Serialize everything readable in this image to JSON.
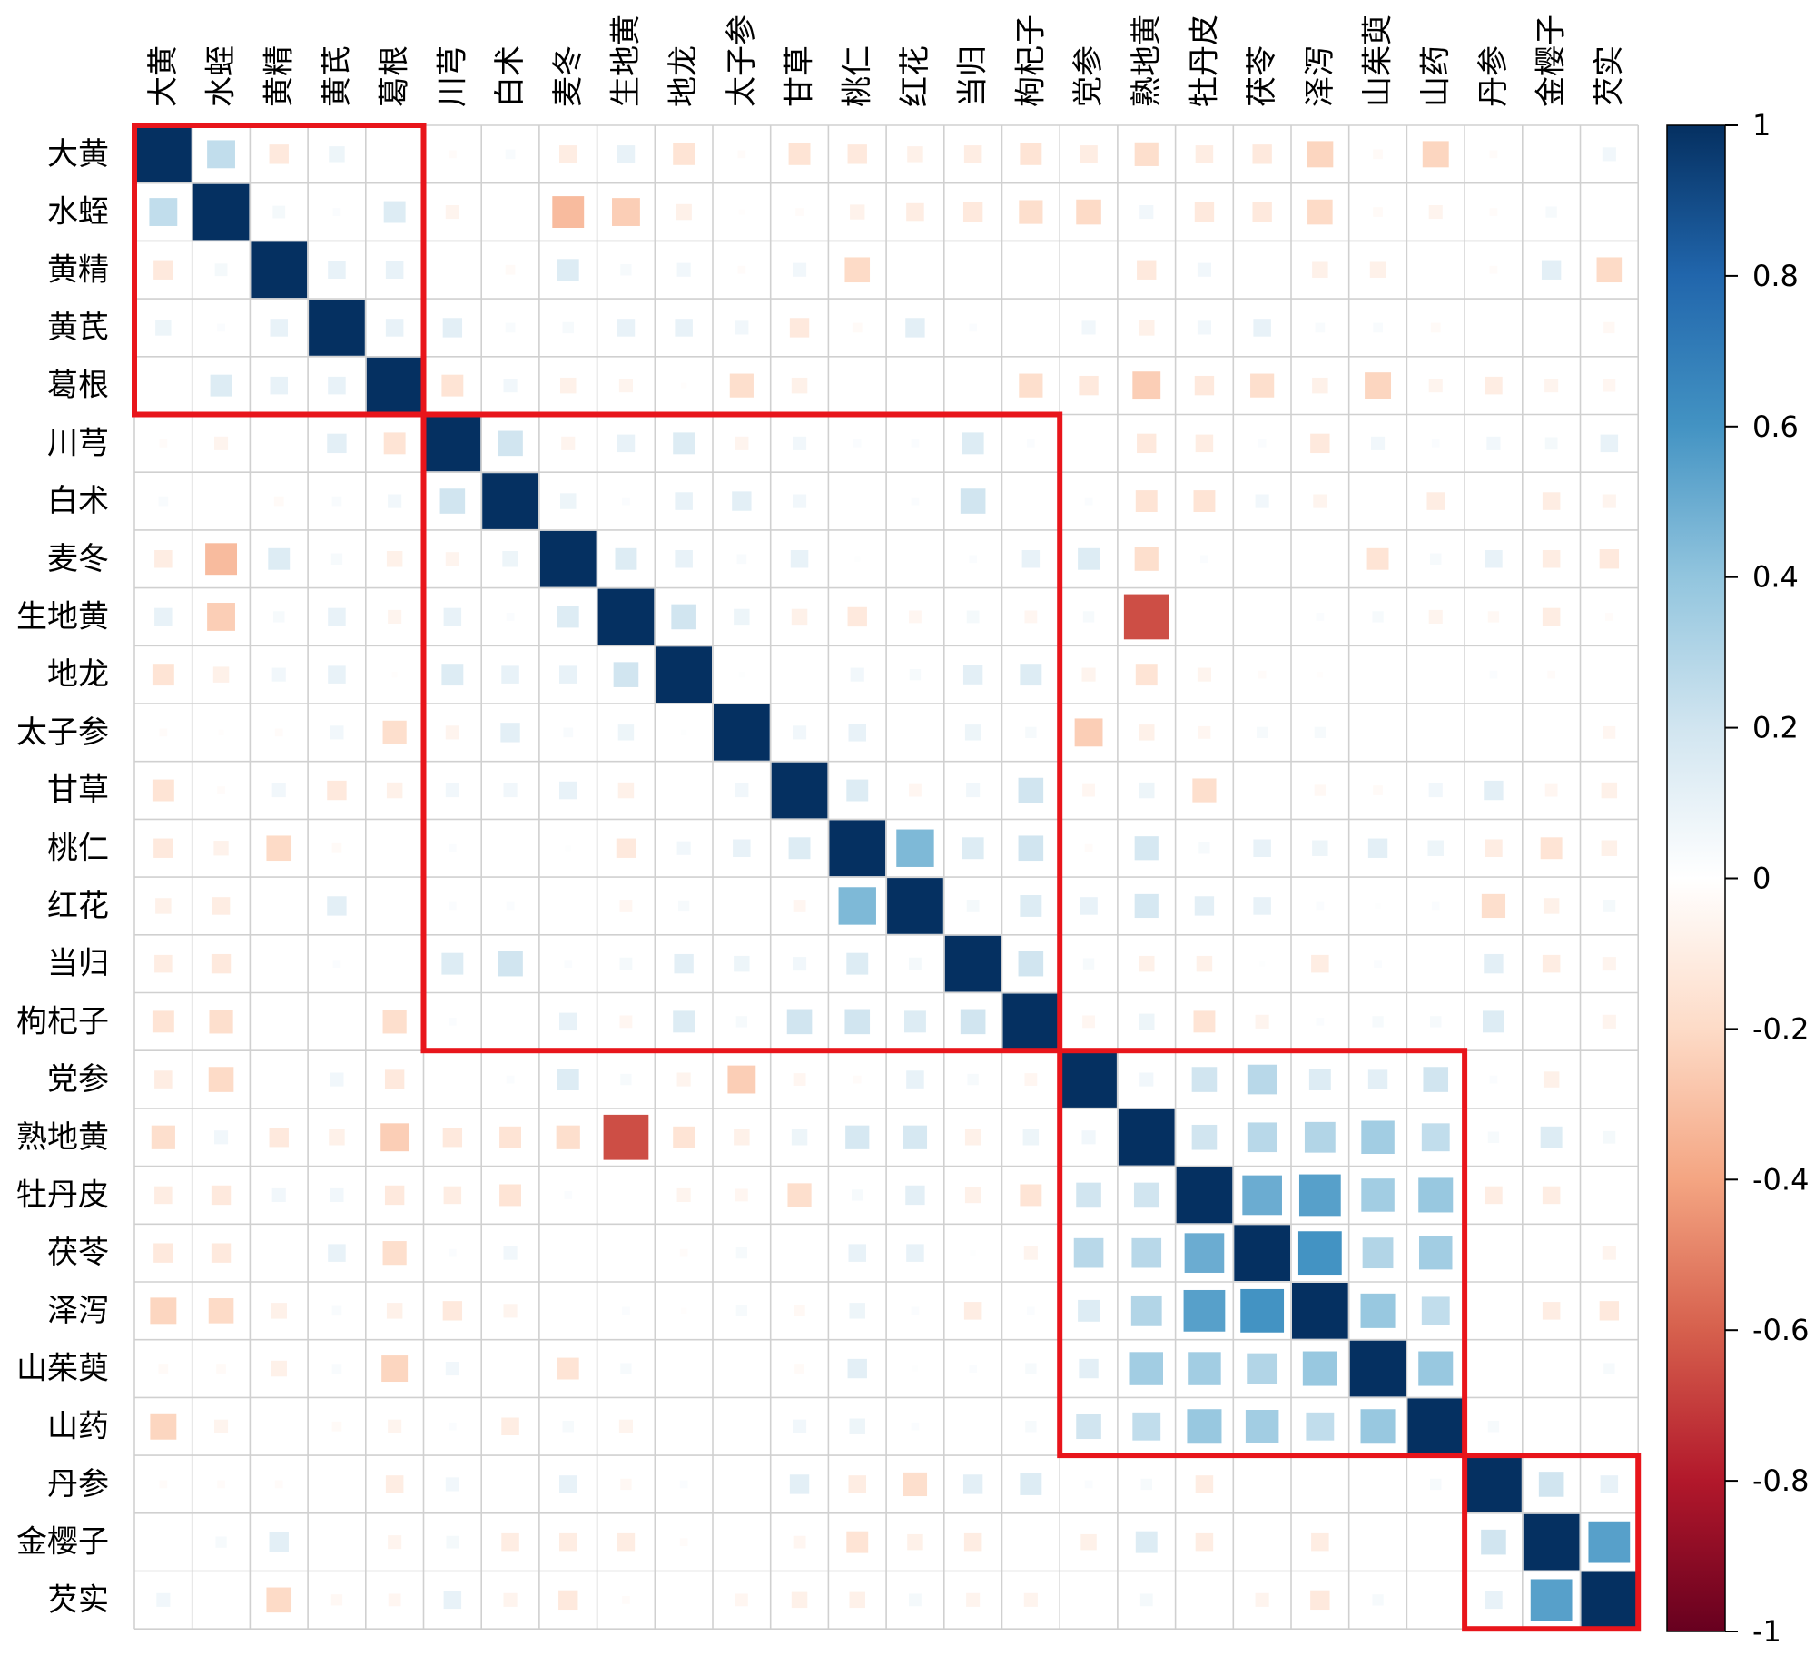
{
  "chart_data": {
    "type": "heatmap",
    "title": "",
    "labels": [
      "大黄",
      "水蛭",
      "黄精",
      "黄芪",
      "葛根",
      "川芎",
      "白术",
      "麦冬",
      "生地黄",
      "地龙",
      "太子参",
      "甘草",
      "桃仁",
      "红花",
      "当归",
      "枸杞子",
      "党参",
      "熟地黄",
      "牡丹皮",
      "茯苓",
      "泽泻",
      "山茱萸",
      "山药",
      "丹参",
      "金樱子",
      "芡实"
    ],
    "colorbar_ticks": [
      "1",
      "0.8",
      "0.6",
      "0.4",
      "0.2",
      "0",
      "-0.2",
      "-0.4",
      "-0.6",
      "-0.8",
      "-1"
    ],
    "color_range": [
      -1,
      1
    ],
    "clusters": [
      {
        "start": 0,
        "end": 4
      },
      {
        "start": 5,
        "end": 15
      },
      {
        "start": 16,
        "end": 22
      },
      {
        "start": 23,
        "end": 25
      }
    ],
    "colors": {
      "cluster_border": "#e8151b",
      "grid": "#d0d0d0",
      "scale": [
        "#67001f",
        "#b2182b",
        "#d6604d",
        "#f4a582",
        "#fddbc7",
        "#ffffff",
        "#d1e5f0",
        "#92c5de",
        "#4393c3",
        "#2166ac",
        "#053061"
      ]
    },
    "pairs": [
      [
        0,
        1,
        0.25
      ],
      [
        0,
        2,
        -0.12
      ],
      [
        0,
        3,
        0.08
      ],
      [
        0,
        5,
        -0.02
      ],
      [
        0,
        6,
        0.03
      ],
      [
        0,
        7,
        -0.1
      ],
      [
        0,
        8,
        0.1
      ],
      [
        0,
        9,
        -0.15
      ],
      [
        0,
        10,
        -0.02
      ],
      [
        0,
        11,
        -0.15
      ],
      [
        0,
        12,
        -0.12
      ],
      [
        0,
        13,
        -0.08
      ],
      [
        0,
        14,
        -0.1
      ],
      [
        0,
        15,
        -0.15
      ],
      [
        0,
        16,
        -0.1
      ],
      [
        0,
        17,
        -0.18
      ],
      [
        0,
        18,
        -0.1
      ],
      [
        0,
        19,
        -0.12
      ],
      [
        0,
        20,
        -0.22
      ],
      [
        0,
        21,
        -0.03
      ],
      [
        0,
        22,
        -0.22
      ],
      [
        0,
        23,
        -0.02
      ],
      [
        0,
        25,
        0.06
      ],
      [
        1,
        2,
        0.05
      ],
      [
        1,
        3,
        0.02
      ],
      [
        1,
        4,
        0.15
      ],
      [
        1,
        5,
        -0.06
      ],
      [
        1,
        7,
        -0.32
      ],
      [
        1,
        8,
        -0.25
      ],
      [
        1,
        9,
        -0.08
      ],
      [
        1,
        10,
        -0.01
      ],
      [
        1,
        11,
        -0.02
      ],
      [
        1,
        12,
        -0.07
      ],
      [
        1,
        13,
        -0.1
      ],
      [
        1,
        14,
        -0.12
      ],
      [
        1,
        15,
        -0.18
      ],
      [
        1,
        16,
        -0.2
      ],
      [
        1,
        17,
        0.06
      ],
      [
        1,
        18,
        -0.12
      ],
      [
        1,
        19,
        -0.12
      ],
      [
        1,
        20,
        -0.2
      ],
      [
        1,
        21,
        -0.03
      ],
      [
        1,
        22,
        -0.06
      ],
      [
        1,
        23,
        -0.02
      ],
      [
        1,
        24,
        0.04
      ],
      [
        2,
        3,
        0.1
      ],
      [
        2,
        4,
        0.1
      ],
      [
        2,
        6,
        -0.03
      ],
      [
        2,
        7,
        0.15
      ],
      [
        2,
        8,
        0.04
      ],
      [
        2,
        9,
        0.06
      ],
      [
        2,
        10,
        -0.02
      ],
      [
        2,
        11,
        0.06
      ],
      [
        2,
        12,
        -0.2
      ],
      [
        2,
        17,
        -0.12
      ],
      [
        2,
        18,
        0.06
      ],
      [
        2,
        20,
        -0.08
      ],
      [
        2,
        21,
        -0.08
      ],
      [
        2,
        23,
        -0.02
      ],
      [
        2,
        24,
        0.12
      ],
      [
        2,
        25,
        -0.2
      ],
      [
        3,
        4,
        0.1
      ],
      [
        3,
        5,
        0.12
      ],
      [
        3,
        6,
        0.03
      ],
      [
        3,
        7,
        0.04
      ],
      [
        3,
        8,
        0.1
      ],
      [
        3,
        9,
        0.1
      ],
      [
        3,
        10,
        0.06
      ],
      [
        3,
        11,
        -0.12
      ],
      [
        3,
        12,
        -0.03
      ],
      [
        3,
        13,
        0.12
      ],
      [
        3,
        14,
        0.02
      ],
      [
        3,
        16,
        0.06
      ],
      [
        3,
        17,
        -0.08
      ],
      [
        3,
        18,
        0.06
      ],
      [
        3,
        19,
        0.1
      ],
      [
        3,
        20,
        0.03
      ],
      [
        3,
        21,
        0.03
      ],
      [
        3,
        22,
        -0.03
      ],
      [
        3,
        25,
        -0.04
      ],
      [
        4,
        5,
        -0.15
      ],
      [
        4,
        6,
        0.06
      ],
      [
        4,
        7,
        -0.08
      ],
      [
        4,
        8,
        -0.06
      ],
      [
        4,
        9,
        -0.01
      ],
      [
        4,
        10,
        -0.18
      ],
      [
        4,
        11,
        -0.08
      ],
      [
        4,
        15,
        -0.18
      ],
      [
        4,
        16,
        -0.12
      ],
      [
        4,
        17,
        -0.25
      ],
      [
        4,
        18,
        -0.12
      ],
      [
        4,
        19,
        -0.18
      ],
      [
        4,
        20,
        -0.08
      ],
      [
        4,
        21,
        -0.22
      ],
      [
        4,
        22,
        -0.06
      ],
      [
        4,
        23,
        -0.1
      ],
      [
        4,
        24,
        -0.06
      ],
      [
        4,
        25,
        -0.05
      ],
      [
        5,
        6,
        0.2
      ],
      [
        5,
        7,
        -0.06
      ],
      [
        5,
        8,
        0.1
      ],
      [
        5,
        9,
        0.15
      ],
      [
        5,
        10,
        -0.06
      ],
      [
        5,
        11,
        0.06
      ],
      [
        5,
        12,
        0.02
      ],
      [
        5,
        13,
        0.02
      ],
      [
        5,
        14,
        0.15
      ],
      [
        5,
        15,
        0.02
      ],
      [
        5,
        17,
        -0.12
      ],
      [
        5,
        18,
        -0.1
      ],
      [
        5,
        19,
        0.02
      ],
      [
        5,
        20,
        -0.12
      ],
      [
        5,
        21,
        0.06
      ],
      [
        5,
        22,
        0.02
      ],
      [
        5,
        23,
        0.06
      ],
      [
        5,
        24,
        0.05
      ],
      [
        5,
        25,
        0.1
      ],
      [
        6,
        7,
        0.08
      ],
      [
        6,
        8,
        0.02
      ],
      [
        6,
        9,
        0.1
      ],
      [
        6,
        10,
        0.12
      ],
      [
        6,
        11,
        0.06
      ],
      [
        6,
        13,
        0.02
      ],
      [
        6,
        14,
        0.2
      ],
      [
        6,
        16,
        0.02
      ],
      [
        6,
        17,
        -0.15
      ],
      [
        6,
        18,
        -0.15
      ],
      [
        6,
        19,
        0.06
      ],
      [
        6,
        20,
        -0.06
      ],
      [
        6,
        22,
        -0.1
      ],
      [
        6,
        24,
        -0.1
      ],
      [
        6,
        25,
        -0.06
      ],
      [
        7,
        8,
        0.15
      ],
      [
        7,
        9,
        0.1
      ],
      [
        7,
        10,
        0.03
      ],
      [
        7,
        11,
        0.1
      ],
      [
        7,
        12,
        0.01
      ],
      [
        7,
        14,
        0.02
      ],
      [
        7,
        15,
        0.1
      ],
      [
        7,
        16,
        0.15
      ],
      [
        7,
        17,
        -0.18
      ],
      [
        7,
        18,
        0.02
      ],
      [
        7,
        21,
        -0.15
      ],
      [
        7,
        22,
        0.04
      ],
      [
        7,
        23,
        0.1
      ],
      [
        7,
        24,
        -0.1
      ],
      [
        7,
        25,
        -0.12
      ],
      [
        8,
        9,
        0.2
      ],
      [
        8,
        10,
        0.08
      ],
      [
        8,
        11,
        -0.08
      ],
      [
        8,
        12,
        -0.12
      ],
      [
        8,
        13,
        -0.05
      ],
      [
        8,
        14,
        0.05
      ],
      [
        8,
        15,
        -0.05
      ],
      [
        8,
        16,
        0.04
      ],
      [
        8,
        17,
        -0.65
      ],
      [
        8,
        20,
        0.02
      ],
      [
        8,
        21,
        0.04
      ],
      [
        8,
        22,
        -0.06
      ],
      [
        8,
        23,
        -0.04
      ],
      [
        8,
        24,
        -0.1
      ],
      [
        8,
        25,
        -0.02
      ],
      [
        9,
        10,
        0.01
      ],
      [
        9,
        12,
        0.06
      ],
      [
        9,
        13,
        0.04
      ],
      [
        9,
        14,
        0.12
      ],
      [
        9,
        15,
        0.15
      ],
      [
        9,
        16,
        -0.06
      ],
      [
        9,
        17,
        -0.15
      ],
      [
        9,
        18,
        -0.06
      ],
      [
        9,
        19,
        -0.02
      ],
      [
        9,
        20,
        -0.01
      ],
      [
        9,
        23,
        0.02
      ],
      [
        9,
        24,
        -0.02
      ],
      [
        10,
        11,
        0.06
      ],
      [
        10,
        12,
        0.1
      ],
      [
        10,
        14,
        0.08
      ],
      [
        10,
        15,
        0.04
      ],
      [
        10,
        16,
        -0.25
      ],
      [
        10,
        17,
        -0.08
      ],
      [
        10,
        18,
        -0.05
      ],
      [
        10,
        19,
        0.04
      ],
      [
        10,
        20,
        0.04
      ],
      [
        10,
        25,
        -0.05
      ],
      [
        11,
        12,
        0.15
      ],
      [
        11,
        13,
        -0.05
      ],
      [
        11,
        14,
        0.06
      ],
      [
        11,
        15,
        0.2
      ],
      [
        11,
        16,
        -0.05
      ],
      [
        11,
        17,
        0.08
      ],
      [
        11,
        18,
        -0.18
      ],
      [
        11,
        20,
        -0.04
      ],
      [
        11,
        21,
        -0.03
      ],
      [
        11,
        22,
        0.06
      ],
      [
        11,
        23,
        0.12
      ],
      [
        11,
        24,
        -0.05
      ],
      [
        11,
        25,
        -0.08
      ],
      [
        12,
        13,
        0.45
      ],
      [
        12,
        14,
        0.15
      ],
      [
        12,
        15,
        0.2
      ],
      [
        12,
        16,
        -0.02
      ],
      [
        12,
        17,
        0.18
      ],
      [
        12,
        18,
        0.04
      ],
      [
        12,
        19,
        0.1
      ],
      [
        12,
        20,
        0.08
      ],
      [
        12,
        21,
        0.12
      ],
      [
        12,
        22,
        0.08
      ],
      [
        12,
        23,
        -0.1
      ],
      [
        12,
        24,
        -0.15
      ],
      [
        12,
        25,
        -0.08
      ],
      [
        13,
        14,
        0.05
      ],
      [
        13,
        15,
        0.15
      ],
      [
        13,
        16,
        0.1
      ],
      [
        13,
        17,
        0.18
      ],
      [
        13,
        18,
        0.12
      ],
      [
        13,
        19,
        0.1
      ],
      [
        13,
        20,
        0.02
      ],
      [
        13,
        21,
        0.01
      ],
      [
        13,
        22,
        0.02
      ],
      [
        13,
        23,
        -0.18
      ],
      [
        13,
        24,
        -0.08
      ],
      [
        13,
        25,
        0.05
      ],
      [
        14,
        15,
        0.2
      ],
      [
        14,
        16,
        0.04
      ],
      [
        14,
        17,
        -0.08
      ],
      [
        14,
        18,
        -0.08
      ],
      [
        14,
        19,
        0.01
      ],
      [
        14,
        20,
        -0.1
      ],
      [
        14,
        21,
        0.02
      ],
      [
        14,
        23,
        0.12
      ],
      [
        14,
        24,
        -0.1
      ],
      [
        14,
        25,
        -0.06
      ],
      [
        15,
        16,
        -0.05
      ],
      [
        15,
        17,
        0.08
      ],
      [
        15,
        18,
        -0.15
      ],
      [
        15,
        19,
        -0.06
      ],
      [
        15,
        20,
        0.02
      ],
      [
        15,
        21,
        0.04
      ],
      [
        15,
        22,
        0.04
      ],
      [
        15,
        23,
        0.15
      ],
      [
        15,
        25,
        -0.06
      ],
      [
        16,
        17,
        0.06
      ],
      [
        16,
        18,
        0.2
      ],
      [
        16,
        19,
        0.28
      ],
      [
        16,
        20,
        0.15
      ],
      [
        16,
        21,
        0.12
      ],
      [
        16,
        22,
        0.2
      ],
      [
        16,
        23,
        0.02
      ],
      [
        16,
        24,
        -0.08
      ],
      [
        17,
        18,
        0.2
      ],
      [
        17,
        19,
        0.28
      ],
      [
        17,
        20,
        0.3
      ],
      [
        17,
        21,
        0.35
      ],
      [
        17,
        22,
        0.25
      ],
      [
        17,
        23,
        0.04
      ],
      [
        17,
        24,
        0.15
      ],
      [
        17,
        25,
        0.05
      ],
      [
        18,
        19,
        0.5
      ],
      [
        18,
        20,
        0.55
      ],
      [
        18,
        21,
        0.35
      ],
      [
        18,
        22,
        0.38
      ],
      [
        18,
        23,
        -0.1
      ],
      [
        18,
        24,
        -0.1
      ],
      [
        19,
        20,
        0.6
      ],
      [
        19,
        21,
        0.3
      ],
      [
        19,
        22,
        0.35
      ],
      [
        19,
        25,
        -0.06
      ],
      [
        20,
        21,
        0.38
      ],
      [
        20,
        22,
        0.25
      ],
      [
        20,
        24,
        -0.1
      ],
      [
        20,
        25,
        -0.12
      ],
      [
        21,
        22,
        0.38
      ],
      [
        21,
        25,
        0.04
      ],
      [
        22,
        23,
        0.04
      ],
      [
        23,
        24,
        0.2
      ],
      [
        23,
        25,
        0.1
      ],
      [
        24,
        25,
        0.55
      ]
    ]
  }
}
